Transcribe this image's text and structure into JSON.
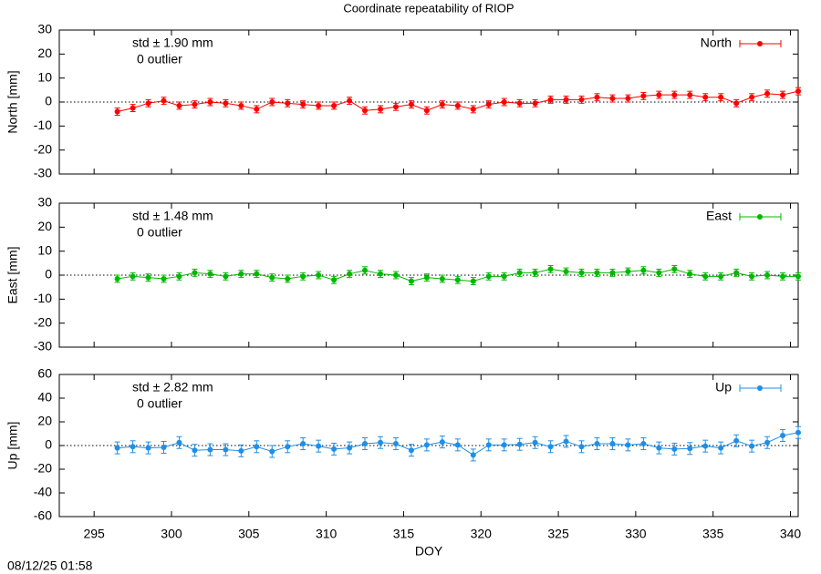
{
  "footer": "08/12/25 01:58",
  "chart_data": [
    {
      "type": "line",
      "title": "Coordinate repeatability of RIOP",
      "ylabel": "North [mm]",
      "annotations": [
        "std ± 1.90 mm",
        "0 outlier"
      ],
      "xlim": [
        292.75,
        340.5
      ],
      "xticks": [
        295,
        300,
        305,
        310,
        315,
        320,
        325,
        330,
        335,
        340
      ],
      "ylim": [
        -30,
        30
      ],
      "yticks": [
        -30,
        -20,
        -10,
        0,
        10,
        20,
        30
      ],
      "x": [
        296.5,
        297.5,
        298.5,
        299.5,
        300.5,
        301.5,
        302.5,
        303.5,
        304.5,
        305.5,
        306.5,
        307.5,
        308.5,
        309.5,
        310.5,
        311.5,
        312.5,
        313.5,
        314.5,
        315.5,
        316.5,
        317.5,
        318.5,
        319.5,
        320.5,
        321.5,
        322.5,
        323.5,
        324.5,
        325.5,
        326.5,
        327.5,
        328.5,
        329.5,
        330.5,
        331.5,
        332.5,
        333.5,
        334.5,
        335.5,
        336.5,
        337.5,
        338.5,
        339.5,
        340.5
      ],
      "series": [
        {
          "name": "North",
          "color": "#ff0000",
          "values": [
            -4,
            -2.5,
            -0.5,
            0.5,
            -1.5,
            -1,
            0,
            -0.5,
            -1.5,
            -3,
            0,
            -0.5,
            -1,
            -1.5,
            -1.5,
            0.5,
            -3.5,
            -3,
            -2,
            -1,
            -3.5,
            -1,
            -1.5,
            -3,
            -1,
            0,
            -0.5,
            -0.5,
            1,
            1,
            1,
            2,
            1.5,
            1.5,
            2.5,
            3,
            3,
            3,
            2,
            2,
            -0.5,
            2,
            3.5,
            3,
            4.5
          ],
          "errors": [
            1.5,
            1.5,
            1.5,
            1.5,
            1.5,
            1.5,
            1.5,
            1.5,
            1.5,
            1.5,
            1.5,
            1.5,
            1.5,
            1.5,
            1.5,
            1.5,
            1.5,
            1.5,
            1.5,
            1.5,
            1.5,
            1.5,
            1.5,
            1.5,
            1.5,
            1.5,
            1.5,
            1.5,
            1.5,
            1.5,
            1.5,
            1.5,
            1.5,
            1.5,
            1.5,
            1.5,
            1.5,
            1.5,
            1.5,
            1.5,
            1.5,
            1.5,
            1.5,
            1.5,
            1.5
          ]
        }
      ]
    },
    {
      "type": "line",
      "ylabel": "East [mm]",
      "annotations": [
        "std ± 1.48 mm",
        "0 outlier"
      ],
      "xlim": [
        292.75,
        340.5
      ],
      "xticks": [
        295,
        300,
        305,
        310,
        315,
        320,
        325,
        330,
        335,
        340
      ],
      "ylim": [
        -30,
        30
      ],
      "yticks": [
        -30,
        -20,
        -10,
        0,
        10,
        20,
        30
      ],
      "x": [
        296.5,
        297.5,
        298.5,
        299.5,
        300.5,
        301.5,
        302.5,
        303.5,
        304.5,
        305.5,
        306.5,
        307.5,
        308.5,
        309.5,
        310.5,
        311.5,
        312.5,
        313.5,
        314.5,
        315.5,
        316.5,
        317.5,
        318.5,
        319.5,
        320.5,
        321.5,
        322.5,
        323.5,
        324.5,
        325.5,
        326.5,
        327.5,
        328.5,
        329.5,
        330.5,
        331.5,
        332.5,
        333.5,
        334.5,
        335.5,
        336.5,
        337.5,
        338.5,
        339.5,
        340.5
      ],
      "series": [
        {
          "name": "East",
          "color": "#00b800",
          "values": [
            -1.5,
            -0.5,
            -1,
            -1.5,
            -0.5,
            1,
            0.5,
            -0.5,
            0.5,
            0.5,
            -1,
            -1.5,
            -0.5,
            0,
            -2,
            0.5,
            2,
            0.5,
            0,
            -2.5,
            -1,
            -1.5,
            -2,
            -2.5,
            -0.5,
            -0.5,
            1,
            1,
            2.5,
            1.5,
            1,
            1,
            1,
            1.5,
            2,
            1,
            2.5,
            0.5,
            -0.5,
            -0.5,
            1,
            -0.5,
            0,
            -0.5,
            -0.5
          ],
          "errors": [
            1.5,
            1.5,
            1.5,
            1.5,
            1.5,
            1.5,
            1.5,
            1.5,
            1.5,
            1.5,
            1.5,
            1.5,
            1.5,
            1.5,
            1.5,
            1.5,
            1.5,
            1.5,
            1.5,
            1.5,
            1.5,
            1.5,
            1.5,
            1.5,
            1.5,
            1.5,
            1.5,
            1.5,
            1.5,
            1.5,
            1.5,
            1.5,
            1.5,
            1.5,
            1.5,
            1.5,
            1.5,
            1.5,
            1.5,
            1.5,
            1.5,
            1.5,
            1.5,
            1.5,
            1.5
          ]
        }
      ]
    },
    {
      "type": "line",
      "ylabel": "Up [mm]",
      "xlabel": "DOY",
      "annotations": [
        "std ± 2.82 mm",
        "0 outlier"
      ],
      "xlim": [
        292.75,
        340.5
      ],
      "xticks": [
        295,
        300,
        305,
        310,
        315,
        320,
        325,
        330,
        335,
        340
      ],
      "ylim": [
        -60,
        60
      ],
      "yticks": [
        -60,
        -40,
        -20,
        0,
        20,
        40,
        60
      ],
      "x": [
        296.5,
        297.5,
        298.5,
        299.5,
        300.5,
        301.5,
        302.5,
        303.5,
        304.5,
        305.5,
        306.5,
        307.5,
        308.5,
        309.5,
        310.5,
        311.5,
        312.5,
        313.5,
        314.5,
        315.5,
        316.5,
        317.5,
        318.5,
        319.5,
        320.5,
        321.5,
        322.5,
        323.5,
        324.5,
        325.5,
        326.5,
        327.5,
        328.5,
        329.5,
        330.5,
        331.5,
        332.5,
        333.5,
        334.5,
        335.5,
        336.5,
        337.5,
        338.5,
        339.5,
        340.5
      ],
      "series": [
        {
          "name": "Up",
          "color": "#1e8fe8",
          "values": [
            -2,
            -1,
            -2,
            -1.5,
            2.5,
            -4,
            -3.5,
            -3.5,
            -4.5,
            -1,
            -5,
            -1,
            1.5,
            -0.5,
            -3,
            -2,
            1.5,
            2.5,
            1.5,
            -4,
            0.5,
            3,
            0.5,
            -8,
            0.5,
            0.5,
            1,
            2.5,
            -1,
            3.5,
            -1,
            1.5,
            1.5,
            0.5,
            1.5,
            -2,
            -3,
            -2.5,
            -0.5,
            -2,
            4,
            -0.5,
            2.5,
            8.5,
            11
          ],
          "errors": [
            5,
            5,
            5,
            5,
            5,
            5,
            5,
            5,
            5,
            5,
            5,
            5,
            5,
            5,
            5,
            5,
            5,
            5,
            5,
            5,
            5,
            5,
            5,
            5,
            5,
            5,
            5,
            5,
            5,
            5,
            5,
            5,
            5,
            5,
            5,
            5,
            5,
            5,
            5,
            5,
            5,
            5,
            5,
            5,
            5
          ]
        }
      ]
    }
  ]
}
